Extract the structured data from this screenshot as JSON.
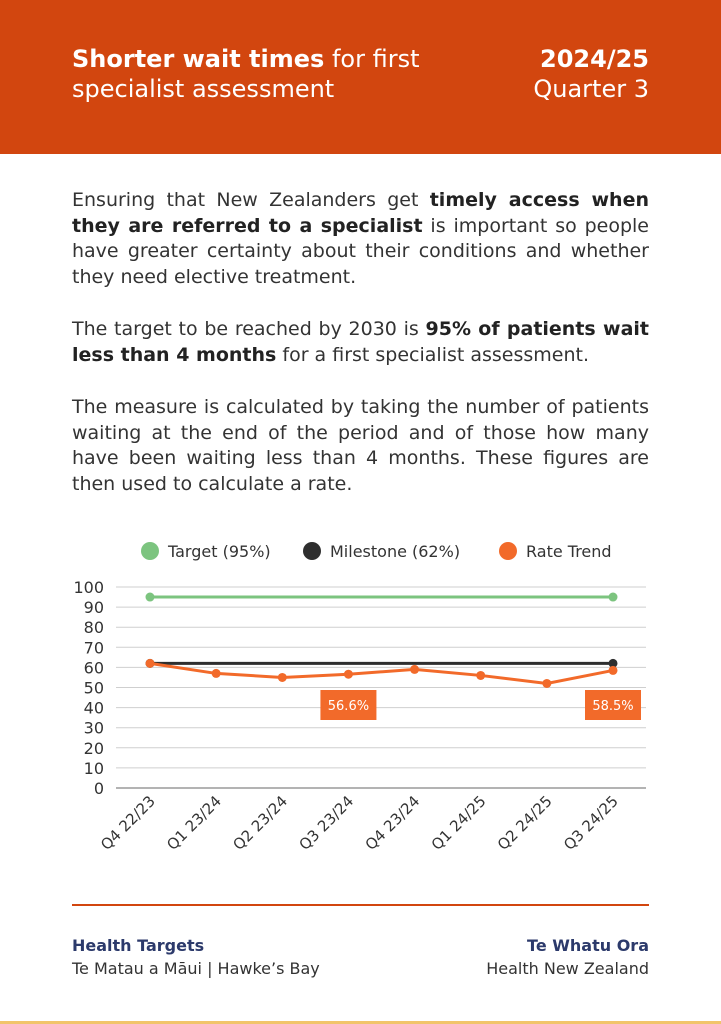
{
  "header": {
    "title_bold": "Shorter wait times",
    "title_rest_line1": " for first",
    "title_line2": "specialist assessment",
    "year": "2024/25",
    "quarter": "Quarter 3"
  },
  "intro": {
    "p1_a": "Ensuring that New Zealanders get ",
    "p1_bold": "timely access when they are referred to a specialist",
    "p1_b": " is important so people have greater certainty about their conditions and whether they need elective treatment.",
    "p2_a": "The target to be reached by 2030 is ",
    "p2_bold": "95% of patients wait less than 4 months",
    "p2_b": " for a first specialist assessment.",
    "p3": "The measure is calculated by taking the number of patients waiting at the end of the period and of those how many have been waiting less than 4 months. These figures are then used to calculate a rate."
  },
  "chart_data": {
    "type": "line",
    "title": "",
    "xlabel": "",
    "ylabel": "",
    "ylim": [
      0,
      100
    ],
    "yticks": [
      0,
      10,
      20,
      30,
      40,
      50,
      60,
      70,
      80,
      90,
      100
    ],
    "grid": true,
    "legend_position": "top",
    "categories": [
      "Q4 22/23",
      "Q1 23/24",
      "Q2 23/24",
      "Q3 23/24",
      "Q4 23/24",
      "Q1 24/25",
      "Q2 24/25",
      "Q3 24/25"
    ],
    "series": [
      {
        "name": "Target (95%)",
        "color": "#7cc47f",
        "values": [
          95,
          95,
          95,
          95,
          95,
          95,
          95,
          95
        ],
        "markers": "endpoints"
      },
      {
        "name": "Milestone (62%)",
        "color": "#2e2e2e",
        "values": [
          62,
          62,
          62,
          62,
          62,
          62,
          62,
          62
        ],
        "markers": "endpoints"
      },
      {
        "name": "Rate Trend",
        "color": "#f26a2a",
        "values": [
          62,
          57,
          55,
          56.6,
          59,
          56,
          52,
          58.5
        ],
        "markers": "all"
      }
    ],
    "annotations": [
      {
        "category": "Q3 23/24",
        "label": "56.6%"
      },
      {
        "category": "Q3 24/25",
        "label": "58.5%"
      }
    ]
  },
  "footer": {
    "left_title": "Health Targets",
    "left_sub": "Te Matau a Māui | Hawke’s Bay",
    "right_title": "Te Whatu Ora",
    "right_sub": "Health New Zealand"
  },
  "colors": {
    "brand": "#d2460f",
    "footer_title": "#2c3a6b",
    "grid": "#c8c8c8"
  }
}
